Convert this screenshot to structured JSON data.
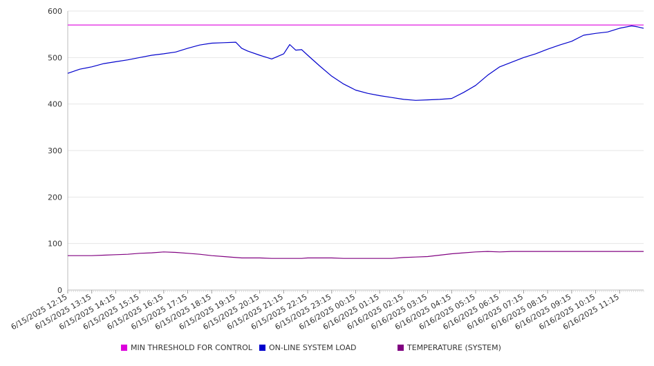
{
  "chart_data": {
    "type": "line",
    "title": "",
    "xlabel": "",
    "ylabel": "",
    "ylim": [
      0,
      600
    ],
    "yticks": [
      0,
      100,
      200,
      300,
      400,
      500,
      600
    ],
    "grid": true,
    "legend_position": "bottom",
    "x_tick_labels": [
      "6/15/2025 12:15",
      "6/15/2025 13:15",
      "6/15/2025 14:15",
      "6/15/2025 15:15",
      "6/15/2025 16:15",
      "6/15/2025 17:15",
      "6/15/2025 18:15",
      "6/15/2025 19:15",
      "6/15/2025 20:15",
      "6/15/2025 21:15",
      "6/15/2025 22:15",
      "6/15/2025 23:15",
      "6/16/2025 00:15",
      "6/16/2025 01:15",
      "6/16/2025 02:15",
      "6/16/2025 03:15",
      "6/16/2025 04:15",
      "6/16/2025 05:15",
      "6/16/2025 06:15",
      "6/16/2025 07:15",
      "6/16/2025 08:15",
      "6/16/2025 09:15",
      "6/16/2025 10:15",
      "6/16/2025 11:15"
    ],
    "x": [
      "6/15/2025 12:15",
      "6/15/2025 12:45",
      "6/15/2025 13:15",
      "6/15/2025 13:45",
      "6/15/2025 14:15",
      "6/15/2025 14:45",
      "6/15/2025 15:15",
      "6/15/2025 15:45",
      "6/15/2025 16:15",
      "6/15/2025 16:45",
      "6/15/2025 17:15",
      "6/15/2025 17:45",
      "6/15/2025 18:15",
      "6/15/2025 18:45",
      "6/15/2025 19:15",
      "6/15/2025 19:30",
      "6/15/2025 19:45",
      "6/15/2025 20:15",
      "6/15/2025 20:45",
      "6/15/2025 21:15",
      "6/15/2025 21:30",
      "6/15/2025 21:45",
      "6/15/2025 22:00",
      "6/15/2025 22:15",
      "6/15/2025 22:45",
      "6/15/2025 23:15",
      "6/15/2025 23:45",
      "6/16/2025 00:15",
      "6/16/2025 00:45",
      "6/16/2025 01:15",
      "6/16/2025 01:45",
      "6/16/2025 02:15",
      "6/16/2025 02:45",
      "6/16/2025 03:15",
      "6/16/2025 03:45",
      "6/16/2025 04:15",
      "6/16/2025 04:45",
      "6/16/2025 05:15",
      "6/16/2025 05:45",
      "6/16/2025 06:15",
      "6/16/2025 06:45",
      "6/16/2025 07:15",
      "6/16/2025 07:45",
      "6/16/2025 08:15",
      "6/16/2025 08:45",
      "6/16/2025 09:15",
      "6/16/2025 09:45",
      "6/16/2025 10:15",
      "6/16/2025 10:45",
      "6/16/2025 11:15",
      "6/16/2025 11:45",
      "6/16/2025 12:00",
      "6/16/2025 12:15"
    ],
    "series": [
      {
        "name": "MIN THRESHOLD FOR CONTROL",
        "color": "#dd00dd",
        "values": [
          570,
          570,
          570,
          570,
          570,
          570,
          570,
          570,
          570,
          570,
          570,
          570,
          570,
          570,
          570,
          570,
          570,
          570,
          570,
          570,
          570,
          570,
          570,
          570,
          570,
          570,
          570,
          570,
          570,
          570,
          570,
          570,
          570,
          570,
          570,
          570,
          570,
          570,
          570,
          570,
          570,
          570,
          570,
          570,
          570,
          570,
          570,
          570,
          570,
          570,
          570,
          570,
          570
        ]
      },
      {
        "name": "ON-LINE SYSTEM LOAD",
        "color": "#0000cc",
        "values": [
          466,
          475,
          480,
          487,
          491,
          495,
          500,
          505,
          508,
          512,
          520,
          527,
          531,
          532,
          533,
          520,
          514,
          505,
          497,
          508,
          528,
          516,
          517,
          505,
          482,
          460,
          443,
          430,
          423,
          418,
          414,
          410,
          408,
          409,
          410,
          412,
          425,
          440,
          462,
          480,
          490,
          500,
          508,
          518,
          527,
          535,
          548,
          552,
          555,
          563,
          568,
          566,
          563
        ]
      },
      {
        "name": "TEMPERATURE (SYSTEM)",
        "color": "#800080",
        "values": [
          74,
          74,
          74,
          75,
          76,
          77,
          79,
          80,
          82,
          81,
          79,
          77,
          74,
          72,
          70,
          69,
          69,
          69,
          68,
          68,
          68,
          68,
          68,
          69,
          69,
          69,
          68,
          68,
          68,
          68,
          68,
          70,
          71,
          72,
          75,
          78,
          80,
          82,
          83,
          82,
          83,
          83,
          83,
          83,
          83,
          83,
          83,
          83,
          83,
          83,
          83,
          83,
          83
        ]
      }
    ]
  }
}
